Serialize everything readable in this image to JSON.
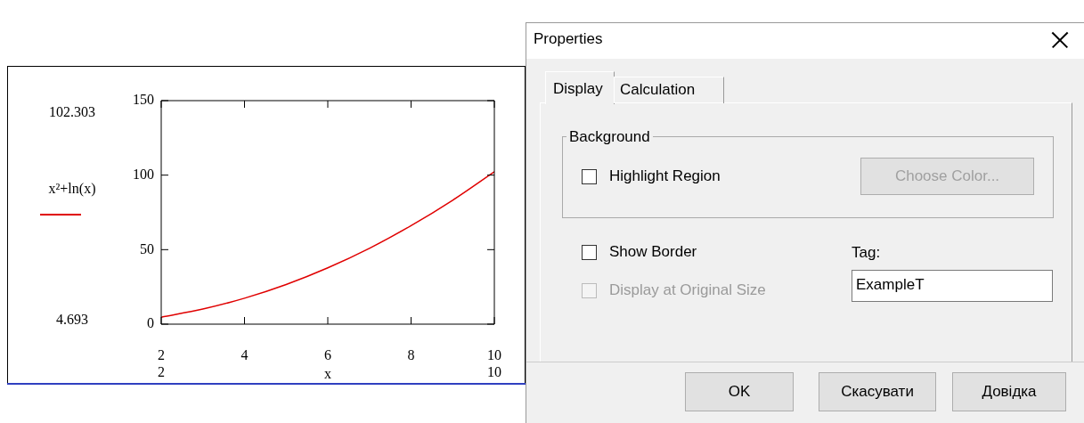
{
  "chart_data": [
    {
      "type": "line",
      "xlabel": "x",
      "x": [
        2,
        3,
        4,
        5,
        6,
        7,
        8,
        9,
        10
      ],
      "series": [
        {
          "name": "x²+ln(x)",
          "color": "#e00000",
          "values": [
            4.693,
            10.1,
            17.4,
            26.6,
            37.8,
            50.9,
            66.1,
            83.2,
            102.303
          ]
        }
      ],
      "xlim": [
        2,
        10
      ],
      "xticks": [
        2,
        4,
        6,
        8,
        10
      ],
      "ylim": [
        0,
        150
      ],
      "yticks": [
        0,
        50,
        100,
        150
      ],
      "legend": "left",
      "annotations": [
        "102.303",
        "4.693",
        "2",
        "10"
      ]
    },
    {
      "type": "other",
      "title": "Properties",
      "annotations": [
        "Display",
        "Calculation",
        "Background",
        "Highlight Region",
        "Choose Color...",
        "Show Border",
        "Display at Original Size",
        "Tag:",
        "ExampleT",
        "OK",
        "Скасувати",
        "Довідка"
      ]
    }
  ]
}
